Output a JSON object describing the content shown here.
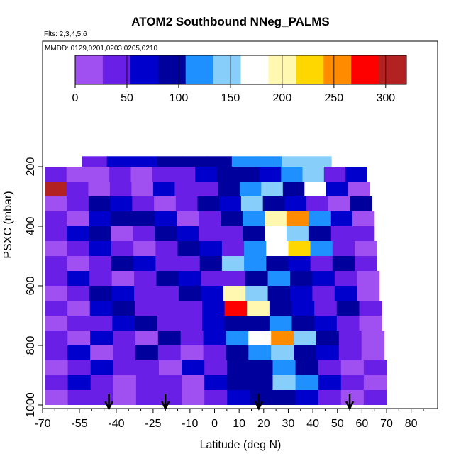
{
  "chart_data": {
    "type": "heatmap",
    "title": "ATOM2 Southbound NNeg_PALMS",
    "subtitle_flights": "Flts: 2,3,4,5,6",
    "subtitle_dates": "MMDD: 0129,0201,0203,0205,0210",
    "xlabel": "Latitude (deg N)",
    "ylabel": "PSXC (mbar)",
    "xlim": [
      -70,
      85
    ],
    "ylim": [
      1010,
      120
    ],
    "x_ticks": [
      -70,
      -55,
      -40,
      -25,
      -10,
      0,
      10,
      20,
      30,
      40,
      50,
      60,
      70,
      80
    ],
    "x_tick_labels": [
      "-70",
      "-55",
      "-40",
      "-25",
      "-10",
      "0",
      "10",
      "20",
      "30",
      "40",
      "50",
      "60",
      "70",
      "80"
    ],
    "y_ticks": [
      200,
      400,
      600,
      800,
      1000
    ],
    "y_tick_labels": [
      "200",
      "400",
      "600",
      "800",
      "1000"
    ],
    "colorbar": {
      "min": 0,
      "max": 320,
      "ticks": [
        0,
        50,
        100,
        150,
        200,
        250,
        300
      ],
      "tick_labels": [
        "0",
        "50",
        "100",
        "150",
        "200",
        "250",
        "300"
      ],
      "colors": [
        "#a050f0",
        "#6a1fe6",
        "#0000cd",
        "#00009c",
        "#1e90ff",
        "#87cefa",
        "#ffffff",
        "#fff8b0",
        "#ffd700",
        "#ff8c00",
        "#ff0000",
        "#b22222"
      ]
    },
    "bands": [
      {
        "p": 190,
        "lat": [
          -54,
          68
        ],
        "values": [
          40,
          60,
          70,
          85,
          95,
          105,
          115,
          125,
          135,
          150,
          160,
          175
        ]
      },
      {
        "p": 225,
        "lat": [
          -69,
          62
        ],
        "values": [
          30,
          15,
          20,
          40,
          25,
          30,
          50,
          60,
          80,
          90,
          70,
          120,
          150,
          30,
          60
        ]
      },
      {
        "p": 275,
        "lat": [
          -69,
          63
        ],
        "values": [
          310,
          30,
          20,
          40,
          10,
          60,
          50,
          30,
          80,
          120,
          140,
          100,
          180,
          60,
          20
        ]
      },
      {
        "p": 325,
        "lat": [
          -69,
          64
        ],
        "values": [
          20,
          40,
          100,
          60,
          30,
          20,
          40,
          80,
          60,
          140,
          100,
          60,
          40,
          20,
          80
        ]
      },
      {
        "p": 375,
        "lat": [
          -69,
          65
        ],
        "values": [
          40,
          20,
          60,
          80,
          100,
          60,
          20,
          40,
          80,
          120,
          200,
          260,
          120,
          60,
          20
        ]
      },
      {
        "p": 425,
        "lat": [
          -69,
          65
        ],
        "values": [
          30,
          60,
          80,
          20,
          40,
          90,
          60,
          30,
          50,
          100,
          180,
          140,
          80,
          40,
          30
        ]
      },
      {
        "p": 475,
        "lat": [
          -69,
          66
        ],
        "values": [
          20,
          40,
          60,
          30,
          20,
          50,
          80,
          60,
          40,
          130,
          160,
          220,
          120,
          40,
          20
        ]
      },
      {
        "p": 525,
        "lat": [
          -69,
          66
        ],
        "values": [
          30,
          20,
          40,
          90,
          60,
          30,
          40,
          80,
          150,
          120,
          90,
          60,
          40,
          80,
          30
        ]
      },
      {
        "p": 575,
        "lat": [
          -69,
          67
        ],
        "values": [
          40,
          60,
          30,
          20,
          50,
          100,
          60,
          30,
          40,
          80,
          120,
          90,
          60,
          40,
          20
        ]
      },
      {
        "p": 625,
        "lat": [
          -69,
          67
        ],
        "values": [
          20,
          40,
          80,
          60,
          30,
          40,
          90,
          60,
          200,
          140,
          100,
          60,
          40,
          60,
          20
        ]
      },
      {
        "p": 675,
        "lat": [
          -69,
          68
        ],
        "values": [
          30,
          20,
          60,
          100,
          40,
          30,
          40,
          70,
          270,
          200,
          90,
          60,
          30,
          80,
          30
        ]
      },
      {
        "p": 725,
        "lat": [
          -69,
          68
        ],
        "values": [
          20,
          40,
          30,
          60,
          90,
          40,
          30,
          60,
          100,
          80,
          120,
          90,
          60,
          40,
          20
        ]
      },
      {
        "p": 775,
        "lat": [
          -69,
          69
        ],
        "values": [
          40,
          20,
          60,
          30,
          20,
          80,
          40,
          60,
          120,
          180,
          250,
          140,
          80,
          40,
          20
        ]
      },
      {
        "p": 825,
        "lat": [
          -69,
          69
        ],
        "values": [
          30,
          60,
          20,
          40,
          80,
          30,
          20,
          50,
          90,
          110,
          140,
          100,
          60,
          30,
          20
        ]
      },
      {
        "p": 875,
        "lat": [
          -69,
          70
        ],
        "values": [
          20,
          30,
          60,
          40,
          30,
          20,
          60,
          40,
          80,
          100,
          120,
          80,
          40,
          20,
          30
        ]
      },
      {
        "p": 925,
        "lat": [
          -69,
          70
        ],
        "values": [
          40,
          60,
          30,
          20,
          40,
          30,
          20,
          60,
          100,
          80,
          140,
          120,
          60,
          40,
          20
        ]
      },
      {
        "p": 975,
        "lat": [
          -69,
          70
        ],
        "values": [
          20,
          30,
          40,
          20,
          30,
          40,
          20,
          30,
          60,
          80,
          100,
          60,
          40,
          20,
          30
        ]
      }
    ],
    "arrows_lat": [
      -43,
      -20,
      18,
      55
    ]
  }
}
